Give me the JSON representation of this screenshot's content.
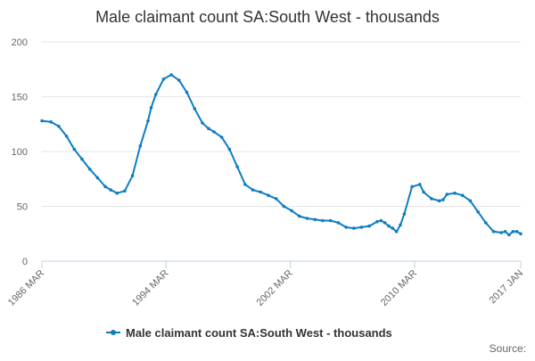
{
  "chart_data": {
    "type": "line",
    "title": "Male claimant count SA:South West - thousands",
    "xlabel": "",
    "ylabel": "",
    "ylim": [
      0,
      200
    ],
    "yticks": [
      0,
      50,
      100,
      150,
      200
    ],
    "xlim": [
      1986.167,
      2017.0
    ],
    "xtick_labels": [
      "1986 MAR",
      "1994 MAR",
      "2002 MAR",
      "2010 MAR",
      "2017 JAN"
    ],
    "xtick_values": [
      1986.167,
      1994.167,
      2002.167,
      2010.167,
      2017.0
    ],
    "grid": "horizontal",
    "legend_position": "bottom",
    "color": "#0f7dc2",
    "series": [
      {
        "name": "Male claimant count SA:South West - thousands",
        "x": [
          1986.17,
          1986.75,
          1987.25,
          1987.75,
          1988.25,
          1988.75,
          1989.25,
          1989.75,
          1990.25,
          1990.6,
          1991.0,
          1991.5,
          1992.0,
          1992.5,
          1993.0,
          1993.2,
          1993.5,
          1994.0,
          1994.5,
          1995.0,
          1995.5,
          1996.0,
          1996.5,
          1996.9,
          1997.25,
          1997.75,
          1998.25,
          1998.75,
          1999.25,
          1999.75,
          2000.25,
          2000.75,
          2001.25,
          2001.75,
          2002.25,
          2002.75,
          2003.25,
          2003.75,
          2004.25,
          2004.75,
          2005.25,
          2005.75,
          2006.25,
          2006.75,
          2007.25,
          2007.75,
          2008.0,
          2008.25,
          2008.5,
          2008.75,
          2009.0,
          2009.25,
          2009.5,
          2010.0,
          2010.5,
          2010.75,
          2011.25,
          2011.75,
          2012.0,
          2012.25,
          2012.75,
          2013.25,
          2013.75,
          2014.25,
          2014.75,
          2015.25,
          2015.75,
          2016.0,
          2016.25,
          2016.5,
          2016.75,
          2017.0
        ],
        "values": [
          128,
          127,
          123,
          114,
          102,
          93,
          84,
          76,
          68,
          65,
          62,
          64,
          78,
          105,
          128,
          140,
          152,
          166,
          170,
          165,
          154,
          139,
          126,
          121,
          118,
          113,
          102,
          86,
          70,
          65,
          63,
          60,
          57,
          50,
          46,
          41,
          39,
          38,
          37,
          37,
          35,
          31,
          30,
          31,
          32,
          36,
          37,
          35,
          32,
          30,
          27,
          33,
          43,
          68,
          70,
          63,
          57,
          55,
          56,
          61,
          62,
          60,
          55,
          45,
          35,
          27,
          26,
          27,
          24,
          27,
          27,
          25
        ]
      }
    ],
    "source_label": "Source:"
  }
}
